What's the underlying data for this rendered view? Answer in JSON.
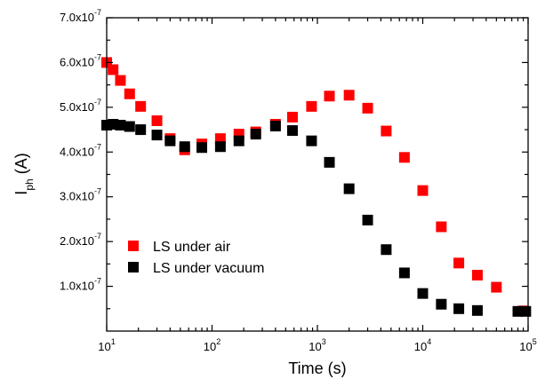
{
  "chart_data": {
    "type": "scatter",
    "x_scale": "log",
    "xlim": [
      10,
      100000
    ],
    "ylim": [
      0,
      7e-07
    ],
    "grid": false,
    "legend_position": "bottom-left",
    "xlabel": "Time (s)",
    "ylabel_main": "I",
    "ylabel_sub": "ph",
    "ylabel_unit": " (A)",
    "x_ticks": [
      {
        "value": 10,
        "base": "10",
        "exp": "1"
      },
      {
        "value": 100,
        "base": "10",
        "exp": "2"
      },
      {
        "value": 1000,
        "base": "10",
        "exp": "3"
      },
      {
        "value": 10000,
        "base": "10",
        "exp": "4"
      },
      {
        "value": 100000,
        "base": "10",
        "exp": "5"
      }
    ],
    "y_ticks": [
      {
        "value": 1e-07,
        "mant": "1.0x10",
        "exp": "-7"
      },
      {
        "value": 2e-07,
        "mant": "2.0x10",
        "exp": "-7"
      },
      {
        "value": 3e-07,
        "mant": "3.0x10",
        "exp": "-7"
      },
      {
        "value": 4e-07,
        "mant": "4.0x10",
        "exp": "-7"
      },
      {
        "value": 5e-07,
        "mant": "5.0x10",
        "exp": "-7"
      },
      {
        "value": 6e-07,
        "mant": "6.0x10",
        "exp": "-7"
      },
      {
        "value": 7e-07,
        "mant": "7.0x10",
        "exp": "-7"
      }
    ],
    "series": [
      {
        "name": "LS under air",
        "color": "#ff0000",
        "points": [
          [
            10,
            6e-07
          ],
          [
            11.5,
            5.84e-07
          ],
          [
            13.5,
            5.6e-07
          ],
          [
            16.5,
            5.3e-07
          ],
          [
            21,
            5.02e-07
          ],
          [
            30,
            4.7e-07
          ],
          [
            40,
            4.3e-07
          ],
          [
            55,
            4.05e-07
          ],
          [
            80,
            4.18e-07
          ],
          [
            120,
            4.3e-07
          ],
          [
            180,
            4.4e-07
          ],
          [
            260,
            4.45e-07
          ],
          [
            400,
            4.62e-07
          ],
          [
            580,
            4.78e-07
          ],
          [
            880,
            5.02e-07
          ],
          [
            1300,
            5.25e-07
          ],
          [
            2000,
            5.27e-07
          ],
          [
            3000,
            4.98e-07
          ],
          [
            4500,
            4.47e-07
          ],
          [
            6700,
            3.88e-07
          ],
          [
            10000,
            3.14e-07
          ],
          [
            15000,
            2.33e-07
          ],
          [
            22000,
            1.52e-07
          ],
          [
            33000,
            1.25e-07
          ],
          [
            50000,
            9.8e-08
          ],
          [
            90000,
            4.5e-08
          ]
        ]
      },
      {
        "name": "LS under vacuum",
        "color": "#000000",
        "points": [
          [
            10,
            4.6e-07
          ],
          [
            11.5,
            4.62e-07
          ],
          [
            13.5,
            4.6e-07
          ],
          [
            16.5,
            4.57e-07
          ],
          [
            21,
            4.5e-07
          ],
          [
            30,
            4.38e-07
          ],
          [
            40,
            4.25e-07
          ],
          [
            55,
            4.12e-07
          ],
          [
            80,
            4.1e-07
          ],
          [
            120,
            4.12e-07
          ],
          [
            180,
            4.25e-07
          ],
          [
            260,
            4.4e-07
          ],
          [
            400,
            4.58e-07
          ],
          [
            580,
            4.48e-07
          ],
          [
            880,
            4.25e-07
          ],
          [
            1300,
            3.77e-07
          ],
          [
            2000,
            3.18e-07
          ],
          [
            3000,
            2.48e-07
          ],
          [
            4500,
            1.82e-07
          ],
          [
            6700,
            1.3e-07
          ],
          [
            10000,
            8.4e-08
          ],
          [
            15000,
            6e-08
          ],
          [
            22000,
            5e-08
          ],
          [
            33000,
            4.6e-08
          ],
          [
            80000,
            4.4e-08
          ],
          [
            95000,
            4.4e-08
          ]
        ]
      }
    ]
  }
}
